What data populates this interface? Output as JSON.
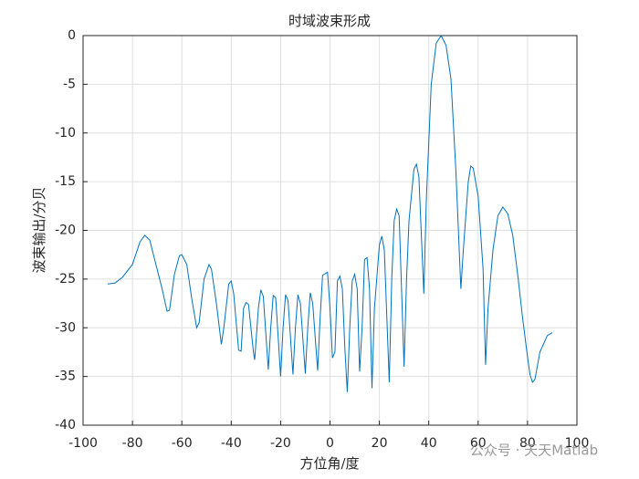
{
  "chart_data": {
    "type": "line",
    "title": "时域波束形成",
    "xlabel": "方位角/度",
    "ylabel": "波束输出/分贝",
    "x": [
      -90,
      -87,
      -84,
      -80,
      -77,
      -75,
      -73,
      -71,
      -68,
      -66,
      -65,
      -63,
      -61,
      -60,
      -58,
      -56,
      -54,
      -53,
      -51,
      -49,
      -48,
      -46,
      -44,
      -43,
      -41,
      -40,
      -39,
      -37,
      -36,
      -35,
      -34,
      -33,
      -31,
      -30.5,
      -29,
      -28,
      -27,
      -25,
      -24,
      -23,
      -22,
      -20,
      -19,
      -18,
      -17,
      -15,
      -14,
      -13,
      -12,
      -10,
      -9,
      -8,
      -7,
      -5,
      -4,
      -3,
      -1,
      0,
      1,
      2,
      3,
      4,
      5,
      6,
      7,
      8,
      9,
      10,
      11,
      12,
      13,
      14,
      15,
      16,
      17,
      18,
      20,
      21,
      22,
      24,
      25,
      26,
      27,
      28,
      30,
      31,
      32,
      34,
      35,
      36,
      38,
      39,
      41,
      43,
      45,
      47,
      49,
      51,
      53,
      54,
      56,
      57,
      58,
      60,
      62,
      63,
      64,
      66,
      68,
      70,
      72,
      74,
      76,
      78,
      80,
      81,
      82,
      83,
      85,
      88,
      90
    ],
    "series": [
      {
        "color": "#0072bd",
        "values": [
          -25.5,
          -25.4,
          -24.8,
          -23.5,
          -21.2,
          -20.5,
          -21,
          -23,
          -26,
          -28.3,
          -28.2,
          -24.5,
          -22.6,
          -22.5,
          -23.5,
          -27,
          -30,
          -29.5,
          -25,
          -23.5,
          -24,
          -27.5,
          -31.7,
          -30,
          -25.5,
          -25.2,
          -26.5,
          -32.3,
          -32.4,
          -28,
          -27.4,
          -27.6,
          -32.5,
          -33.3,
          -28,
          -26.1,
          -26.8,
          -34.3,
          -30,
          -26.7,
          -26.9,
          -35,
          -30,
          -26.6,
          -27.2,
          -34.8,
          -30,
          -26.6,
          -27.5,
          -34.7,
          -30,
          -26.4,
          -27.5,
          -34.4,
          -29,
          -24.6,
          -24.3,
          -28,
          -33.1,
          -32.5,
          -25.2,
          -24.7,
          -26,
          -32,
          -36.6,
          -30,
          -25.2,
          -24.5,
          -26,
          -34.5,
          -30,
          -23,
          -22.8,
          -26,
          -36.2,
          -28,
          -21.5,
          -20.6,
          -22,
          -35.6,
          -25,
          -19,
          -17.8,
          -18.5,
          -34,
          -25,
          -19,
          -13.7,
          -13.2,
          -14.5,
          -26.5,
          -17,
          -5,
          -0.8,
          0,
          -1,
          -4.5,
          -14,
          -26,
          -22,
          -15,
          -13.4,
          -13.6,
          -16.5,
          -24,
          -33.8,
          -28,
          -22,
          -18.5,
          -17.6,
          -18.3,
          -20.5,
          -24.5,
          -29,
          -33,
          -34.8,
          -35.6,
          -35.3,
          -32.5,
          -30.8,
          -30.5
        ]
      }
    ],
    "xlim": [
      -100,
      100
    ],
    "xticks": [
      -100,
      -80,
      -60,
      -40,
      -20,
      0,
      20,
      40,
      60,
      80,
      100
    ],
    "ylim": [
      -40,
      0
    ],
    "yticks": [
      -40,
      -35,
      -30,
      -25,
      -20,
      -15,
      -10,
      -5,
      0
    ],
    "grid": true,
    "watermark": "公众号 · 天天Matlab"
  }
}
